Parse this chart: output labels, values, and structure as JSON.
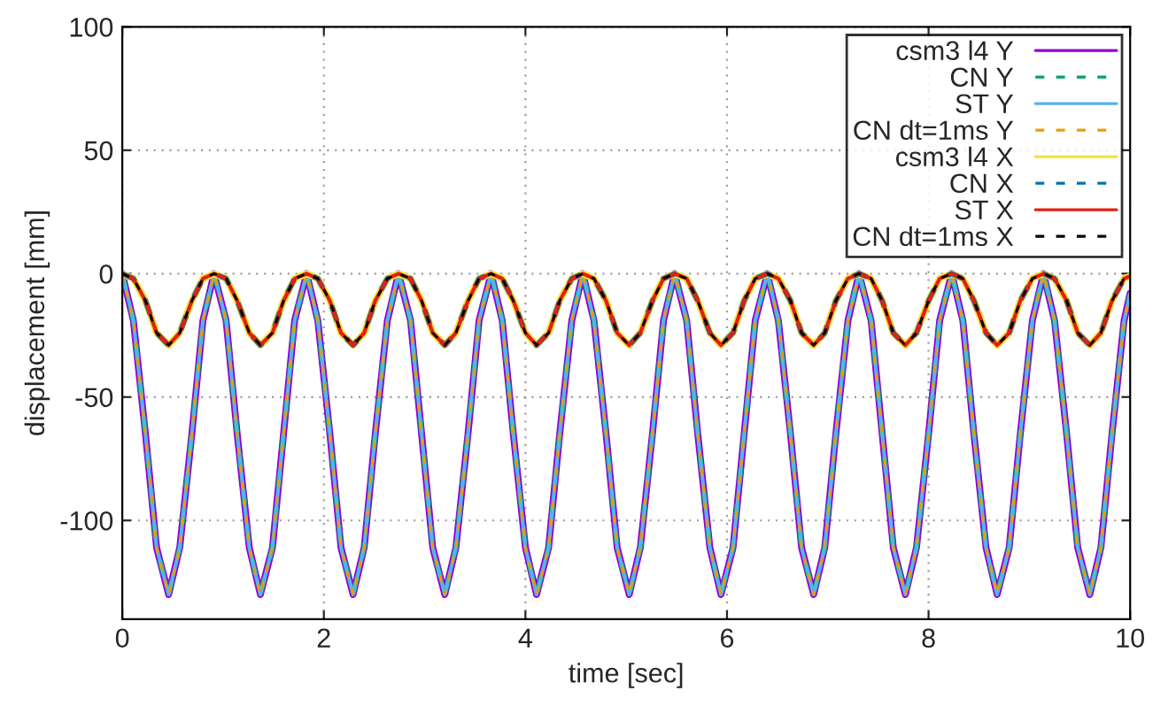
{
  "chart_data": {
    "type": "line",
    "xlabel": "time [sec]",
    "ylabel": "displacement [mm]",
    "xlim": [
      0,
      10
    ],
    "xticks": [
      0,
      2,
      4,
      6,
      8,
      10
    ],
    "ylim": [
      -140,
      100
    ],
    "yticks": [
      -100,
      -50,
      0,
      50,
      100
    ],
    "grid": true,
    "legend": "top right",
    "marker": "none",
    "x": [
      0,
      0.11,
      0.23,
      0.34,
      0.46,
      0.57,
      0.69,
      0.8,
      0.91,
      1.03,
      1.14,
      1.26,
      1.37,
      1.49,
      1.6,
      1.71,
      1.83,
      1.94,
      2.06,
      2.17,
      2.29,
      2.4,
      2.51,
      2.63,
      2.74,
      2.86,
      2.97,
      3.08,
      3.2,
      3.31,
      3.43,
      3.54,
      3.66,
      3.77,
      3.88,
      4.0,
      4.11,
      4.23,
      4.34,
      4.46,
      4.57,
      4.68,
      4.8,
      4.91,
      5.03,
      5.14,
      5.26,
      5.37,
      5.48,
      5.6,
      5.71,
      5.83,
      5.94,
      6.06,
      6.17,
      6.28,
      6.4,
      6.51,
      6.63,
      6.74,
      6.86,
      6.97,
      7.08,
      7.2,
      7.31,
      7.43,
      7.54,
      7.65,
      7.77,
      7.88,
      8.0,
      8.11,
      8.23,
      8.34,
      8.45,
      8.57,
      8.68,
      8.8,
      8.91,
      9.03,
      9.14,
      9.25,
      9.37,
      9.48,
      9.6,
      9.71,
      9.82,
      9.94,
      10
    ],
    "series": [
      {
        "name": "csm3 l4 Y",
        "color": "#9400d3",
        "line_style": "solid",
        "values": [
          0,
          -19,
          -65,
          -111,
          -130,
          -111,
          -65,
          -19,
          0,
          -19,
          -65,
          -111,
          -130,
          -111,
          -65,
          -19,
          0,
          -19,
          -65,
          -111,
          -130,
          -111,
          -65,
          -19,
          0,
          -19,
          -65,
          -111,
          -130,
          -111,
          -65,
          -19,
          0,
          -19,
          -65,
          -111,
          -130,
          -111,
          -65,
          -19,
          0,
          -19,
          -65,
          -111,
          -130,
          -111,
          -65,
          -19,
          0,
          -19,
          -65,
          -111,
          -130,
          -111,
          -65,
          -19,
          0,
          -19,
          -65,
          -111,
          -130,
          -111,
          -65,
          -19,
          0,
          -19,
          -65,
          -111,
          -130,
          -111,
          -65,
          -19,
          0,
          -19,
          -65,
          -111,
          -130,
          -111,
          -65,
          -19,
          0,
          -19,
          -65,
          -111,
          -130,
          -111,
          -65,
          -19,
          -8
        ]
      },
      {
        "name": "CN Y",
        "color": "#009e73",
        "line_style": "dashed",
        "values": [
          0,
          -19,
          -65,
          -111,
          -130,
          -111,
          -65,
          -19,
          0,
          -19,
          -65,
          -111,
          -130,
          -111,
          -65,
          -19,
          0,
          -19,
          -65,
          -111,
          -130,
          -111,
          -65,
          -19,
          0,
          -19,
          -65,
          -111,
          -130,
          -111,
          -65,
          -19,
          0,
          -19,
          -65,
          -111,
          -130,
          -111,
          -65,
          -19,
          0,
          -19,
          -65,
          -111,
          -130,
          -111,
          -65,
          -19,
          0,
          -19,
          -65,
          -111,
          -130,
          -111,
          -65,
          -19,
          0,
          -19,
          -65,
          -111,
          -130,
          -111,
          -65,
          -19,
          0,
          -19,
          -65,
          -111,
          -130,
          -111,
          -65,
          -19,
          0,
          -19,
          -65,
          -111,
          -130,
          -111,
          -65,
          -19,
          0,
          -19,
          -65,
          -111,
          -130,
          -111,
          -65,
          -19,
          -8
        ]
      },
      {
        "name": "ST Y",
        "color": "#56b4e9",
        "line_style": "solid",
        "values": [
          0,
          -19,
          -65,
          -111,
          -130,
          -111,
          -65,
          -19,
          0,
          -19,
          -65,
          -111,
          -130,
          -111,
          -65,
          -19,
          0,
          -19,
          -65,
          -111,
          -130,
          -111,
          -65,
          -19,
          0,
          -19,
          -65,
          -111,
          -130,
          -111,
          -65,
          -19,
          0,
          -19,
          -65,
          -111,
          -130,
          -111,
          -65,
          -19,
          0,
          -19,
          -65,
          -111,
          -130,
          -111,
          -65,
          -19,
          0,
          -19,
          -65,
          -111,
          -130,
          -111,
          -65,
          -19,
          0,
          -19,
          -65,
          -111,
          -130,
          -111,
          -65,
          -19,
          0,
          -19,
          -65,
          -111,
          -130,
          -111,
          -65,
          -19,
          0,
          -19,
          -65,
          -111,
          -130,
          -111,
          -65,
          -19,
          0,
          -19,
          -65,
          -111,
          -130,
          -111,
          -65,
          -19,
          -8
        ]
      },
      {
        "name": "CN dt=1ms Y",
        "color": "#e69f00",
        "line_style": "dashed",
        "values": [
          0,
          -19,
          -65,
          -111,
          -130,
          -111,
          -65,
          -19,
          0,
          -19,
          -65,
          -111,
          -130,
          -111,
          -65,
          -19,
          0,
          -19,
          -65,
          -111,
          -130,
          -111,
          -65,
          -19,
          0,
          -19,
          -65,
          -111,
          -130,
          -111,
          -65,
          -19,
          0,
          -19,
          -65,
          -111,
          -130,
          -111,
          -65,
          -19,
          0,
          -19,
          -65,
          -111,
          -130,
          -111,
          -65,
          -19,
          0,
          -19,
          -65,
          -111,
          -130,
          -111,
          -65,
          -19,
          0,
          -19,
          -65,
          -111,
          -130,
          -111,
          -65,
          -19,
          0,
          -19,
          -65,
          -111,
          -130,
          -111,
          -65,
          -19,
          0,
          -19,
          -65,
          -111,
          -130,
          -111,
          -65,
          -19,
          0,
          -19,
          -65,
          -111,
          -130,
          -111,
          -65,
          -19,
          -8
        ]
      },
      {
        "name": "csm3 l4 X",
        "color": "#f0e442",
        "line_style": "solid",
        "values": [
          0,
          -2,
          -11,
          -24,
          -29,
          -24,
          -11,
          -2,
          0,
          -2,
          -11,
          -24,
          -29,
          -24,
          -11,
          -2,
          0,
          -2,
          -11,
          -24,
          -29,
          -24,
          -11,
          -2,
          0,
          -2,
          -11,
          -24,
          -29,
          -24,
          -11,
          -2,
          0,
          -2,
          -11,
          -24,
          -29,
          -24,
          -11,
          -2,
          0,
          -2,
          -11,
          -24,
          -29,
          -24,
          -11,
          -2,
          0,
          -2,
          -11,
          -24,
          -29,
          -24,
          -11,
          -2,
          0,
          -2,
          -11,
          -24,
          -29,
          -24,
          -11,
          -2,
          0,
          -2,
          -11,
          -24,
          -29,
          -24,
          -11,
          -2,
          0,
          -2,
          -11,
          -24,
          -29,
          -24,
          -11,
          -2,
          0,
          -2,
          -11,
          -24,
          -29,
          -24,
          -11,
          -2,
          -1
        ]
      },
      {
        "name": "CN X",
        "color": "#0072b2",
        "line_style": "dashed",
        "values": [
          0,
          -2,
          -11,
          -24,
          -29,
          -24,
          -11,
          -2,
          0,
          -2,
          -11,
          -24,
          -29,
          -24,
          -11,
          -2,
          0,
          -2,
          -11,
          -24,
          -29,
          -24,
          -11,
          -2,
          0,
          -2,
          -11,
          -24,
          -29,
          -24,
          -11,
          -2,
          0,
          -2,
          -11,
          -24,
          -29,
          -24,
          -11,
          -2,
          0,
          -2,
          -11,
          -24,
          -29,
          -24,
          -11,
          -2,
          0,
          -2,
          -11,
          -24,
          -29,
          -24,
          -11,
          -2,
          0,
          -2,
          -11,
          -24,
          -29,
          -24,
          -11,
          -2,
          0,
          -2,
          -11,
          -24,
          -29,
          -24,
          -11,
          -2,
          0,
          -2,
          -11,
          -24,
          -29,
          -24,
          -11,
          -2,
          0,
          -2,
          -11,
          -24,
          -29,
          -24,
          -11,
          -2,
          -1
        ]
      },
      {
        "name": "ST X",
        "color": "#e51e10",
        "line_style": "solid",
        "values": [
          0,
          -2,
          -11,
          -24,
          -29,
          -24,
          -11,
          -2,
          0,
          -2,
          -11,
          -24,
          -29,
          -24,
          -11,
          -2,
          0,
          -2,
          -11,
          -24,
          -29,
          -24,
          -11,
          -2,
          0,
          -2,
          -11,
          -24,
          -29,
          -24,
          -11,
          -2,
          0,
          -2,
          -11,
          -24,
          -29,
          -24,
          -11,
          -2,
          0,
          -2,
          -11,
          -24,
          -29,
          -24,
          -11,
          -2,
          0,
          -2,
          -11,
          -24,
          -29,
          -24,
          -11,
          -2,
          0,
          -2,
          -11,
          -24,
          -29,
          -24,
          -11,
          -2,
          0,
          -2,
          -11,
          -24,
          -29,
          -24,
          -11,
          -2,
          0,
          -2,
          -11,
          -24,
          -29,
          -24,
          -11,
          -2,
          0,
          -2,
          -11,
          -24,
          -29,
          -24,
          -11,
          -2,
          -1
        ]
      },
      {
        "name": "CN dt=1ms X",
        "color": "#000000",
        "line_style": "dashed",
        "values": [
          0,
          -2,
          -11,
          -24,
          -29,
          -24,
          -11,
          -2,
          0,
          -2,
          -11,
          -24,
          -29,
          -24,
          -11,
          -2,
          0,
          -2,
          -11,
          -24,
          -29,
          -24,
          -11,
          -2,
          0,
          -2,
          -11,
          -24,
          -29,
          -24,
          -11,
          -2,
          0,
          -2,
          -11,
          -24,
          -29,
          -24,
          -11,
          -2,
          0,
          -2,
          -11,
          -24,
          -29,
          -24,
          -11,
          -2,
          0,
          -2,
          -11,
          -24,
          -29,
          -24,
          -11,
          -2,
          0,
          -2,
          -11,
          -24,
          -29,
          -24,
          -11,
          -2,
          0,
          -2,
          -11,
          -24,
          -29,
          -24,
          -11,
          -2,
          0,
          -2,
          -11,
          -24,
          -29,
          -24,
          -11,
          -2,
          0,
          -2,
          -11,
          -24,
          -29,
          -24,
          -11,
          -2,
          -1
        ]
      }
    ]
  }
}
